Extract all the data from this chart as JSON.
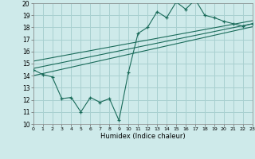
{
  "xlabel": "Humidex (Indice chaleur)",
  "bg_color": "#ceeaea",
  "grid_color": "#a8d0d0",
  "line_color": "#1a6b5a",
  "xmin": 0,
  "xmax": 23,
  "ymin": 10,
  "ymax": 20,
  "yticks": [
    10,
    11,
    12,
    13,
    14,
    15,
    16,
    17,
    18,
    19,
    20
  ],
  "xticks": [
    0,
    1,
    2,
    3,
    4,
    5,
    6,
    7,
    8,
    9,
    10,
    11,
    12,
    13,
    14,
    15,
    16,
    17,
    18,
    19,
    20,
    21,
    22,
    23
  ],
  "data_x": [
    0,
    1,
    2,
    3,
    4,
    5,
    6,
    7,
    8,
    9,
    10,
    11,
    12,
    13,
    14,
    15,
    16,
    17,
    18,
    19,
    20,
    21,
    22,
    23
  ],
  "data_y": [
    14.5,
    14.1,
    13.9,
    12.1,
    12.2,
    11.0,
    12.2,
    11.8,
    12.1,
    10.3,
    14.3,
    17.5,
    18.0,
    19.3,
    18.8,
    20.1,
    19.5,
    20.3,
    19.0,
    18.8,
    18.5,
    18.3,
    18.1,
    18.3
  ],
  "line1_x": [
    0,
    23
  ],
  "line1_y": [
    14.6,
    18.3
  ],
  "line2_x": [
    0,
    23
  ],
  "line2_y": [
    15.2,
    18.55
  ],
  "line3_x": [
    0,
    23
  ],
  "line3_y": [
    14.0,
    18.05
  ]
}
